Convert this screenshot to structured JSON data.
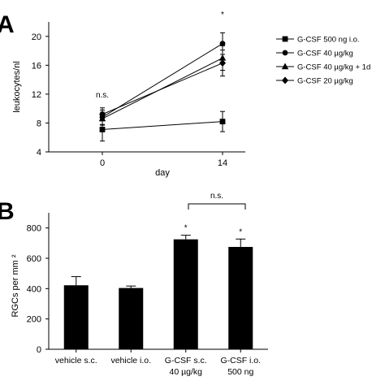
{
  "panels": {
    "a_label": "A",
    "b_label": "B"
  },
  "chart_data": [
    {
      "type": "line",
      "xlabel": "day",
      "ylabel": "leukocytes/nl",
      "x": [
        0,
        14
      ],
      "x_tick_labels": [
        "0",
        "14"
      ],
      "ylim": [
        4,
        22
      ],
      "y_ticks": [
        "4",
        "8",
        "12",
        "16",
        "20"
      ],
      "grid": false,
      "legend_position": "right",
      "series": [
        {
          "name": "G-CSF 500 ng i.o.",
          "marker": "square",
          "values": [
            7.1,
            8.2
          ],
          "errors": [
            1.6,
            1.4
          ]
        },
        {
          "name": "G-CSF 40 µg/kg",
          "marker": "circle",
          "values": [
            8.8,
            19.0
          ],
          "errors": [
            1.0,
            1.5
          ]
        },
        {
          "name": "G-CSF 40 µg/kg + 1d",
          "marker": "triangle",
          "values": [
            8.6,
            17.0
          ],
          "errors": [
            0.9,
            1.7
          ]
        },
        {
          "name": "G-CSF 20 µg/kg",
          "marker": "diamond",
          "values": [
            9.2,
            16.3
          ],
          "errors": [
            0.9,
            1.8
          ]
        }
      ],
      "annotations": {
        "day0": "n.s.",
        "day14": "*"
      }
    },
    {
      "type": "bar",
      "ylabel": "RGCs per mm ²",
      "ylim": [
        0,
        900
      ],
      "y_ticks": [
        "0",
        "200",
        "400",
        "600",
        "800"
      ],
      "categories": [
        [
          "vehicle s.c."
        ],
        [
          "vehicle i.o."
        ],
        [
          "G-CSF s.c.",
          "40 µg/kg"
        ],
        [
          "G-CSF i.o.",
          "500 ng"
        ]
      ],
      "values": [
        422,
        404,
        725,
        675
      ],
      "errors": [
        57,
        13,
        27,
        52
      ],
      "bar_color": "#000000",
      "significance": [
        "",
        "",
        "*",
        "*"
      ],
      "bracket_label": "n.s."
    }
  ]
}
